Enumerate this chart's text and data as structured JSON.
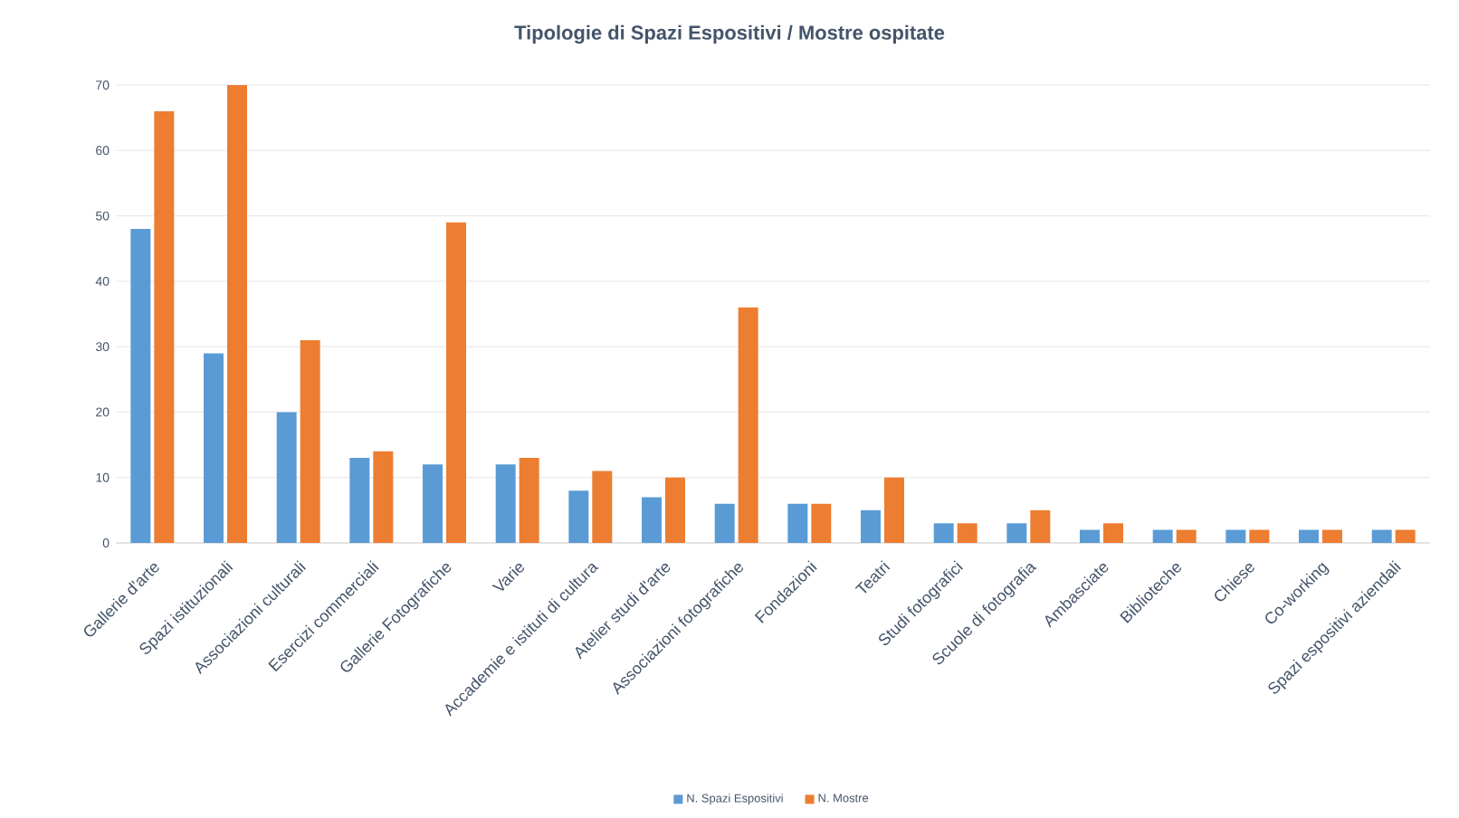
{
  "chart_data": {
    "type": "bar",
    "title": "Tipologie di Spazi Espositivi / Mostre ospitate",
    "categories": [
      "Gallerie d'arte",
      "Spazi istituzionali",
      "Associazioni culturali",
      "Esercizi commerciali",
      "Gallerie Fotografiche",
      "Varie",
      "Accademie e istituti di cultura",
      "Atelier studi d'arte",
      "Associazioni fotografiche",
      "Fondazioni",
      "Teatri",
      "Studi fotografici",
      "Scuole di fotografia",
      "Ambasciate",
      "Biblioteche",
      "Chiese",
      "Co-working",
      "Spazi espositivi aziendali"
    ],
    "series": [
      {
        "name": "N. Spazi Espositivi",
        "color": "#5b9bd5",
        "values": [
          48,
          29,
          20,
          13,
          12,
          12,
          8,
          7,
          6,
          6,
          5,
          3,
          3,
          2,
          2,
          2,
          2,
          2
        ]
      },
      {
        "name": "N. Mostre",
        "color": "#ed7d31",
        "values": [
          66,
          70,
          31,
          14,
          49,
          13,
          11,
          10,
          36,
          6,
          10,
          3,
          5,
          3,
          2,
          2,
          2,
          2
        ]
      }
    ],
    "ylim": [
      0,
      70
    ],
    "yticks": [
      0,
      10,
      20,
      30,
      40,
      50,
      60,
      70
    ],
    "grid": "y",
    "legend": "bottom"
  }
}
